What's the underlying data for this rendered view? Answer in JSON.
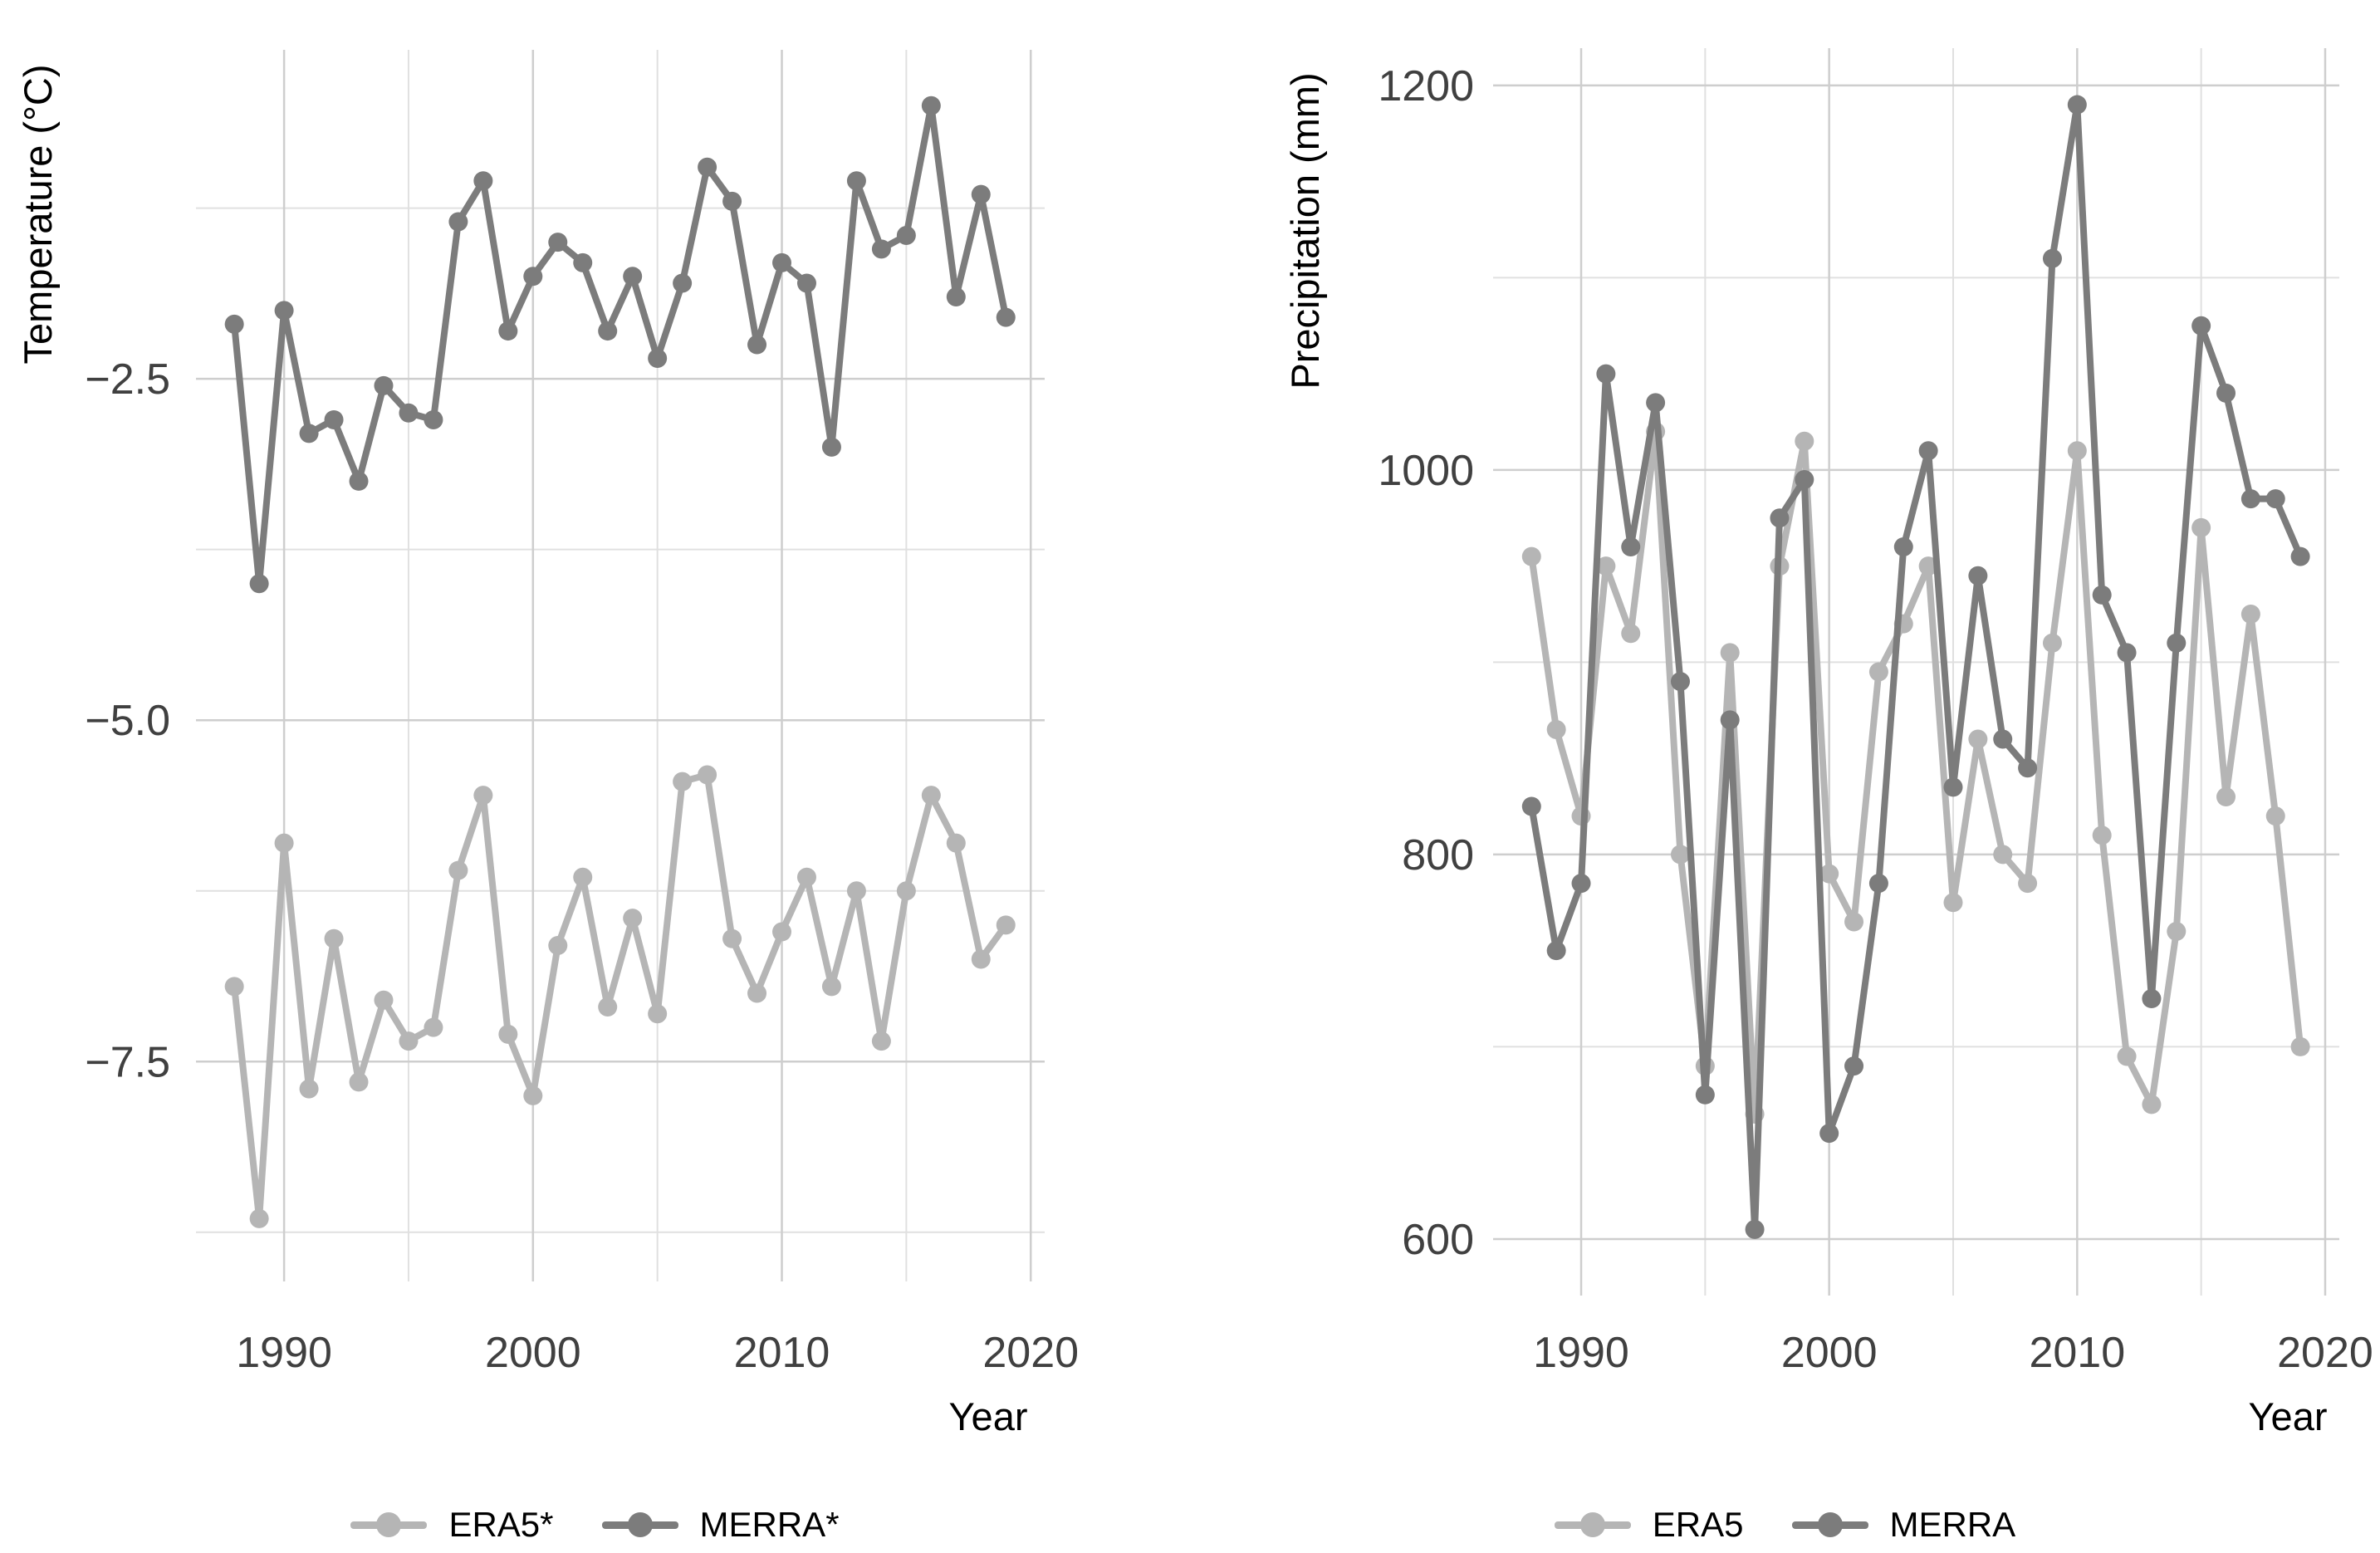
{
  "figure": {
    "background": "#ffffff"
  },
  "colors": {
    "era5": "#b5b5b5",
    "merra": "#7c7c7c",
    "grid_major": "#cecece",
    "grid_minor": "#e0e0e0",
    "tick_text": "#404040",
    "title_text": "#000000"
  },
  "chart_data": [
    {
      "type": "line",
      "title": "",
      "xlabel": "Year",
      "ylabel": "Temperature (°C)",
      "x": [
        1988,
        1989,
        1990,
        1991,
        1992,
        1993,
        1994,
        1995,
        1996,
        1997,
        1998,
        1999,
        2000,
        2001,
        2002,
        2003,
        2004,
        2005,
        2006,
        2007,
        2008,
        2009,
        2010,
        2011,
        2012,
        2013,
        2014,
        2015,
        2016,
        2017,
        2018,
        2019
      ],
      "series": [
        {
          "name": "ERA5*",
          "color_key": "era5",
          "values": [
            -6.95,
            -8.65,
            -5.9,
            -7.7,
            -6.6,
            -7.65,
            -7.05,
            -7.35,
            -7.25,
            -6.1,
            -5.55,
            -7.3,
            -7.75,
            -6.65,
            -6.15,
            -7.1,
            -6.45,
            -7.15,
            -5.45,
            -5.4,
            -6.6,
            -7.0,
            -6.55,
            -6.15,
            -6.95,
            -6.25,
            -7.35,
            -6.25,
            -5.55,
            -5.9,
            -6.75,
            -6.5
          ]
        },
        {
          "name": "MERRA*",
          "color_key": "merra",
          "values": [
            -2.1,
            -4.0,
            -2.0,
            -2.9,
            -2.8,
            -3.25,
            -2.55,
            -2.75,
            -2.8,
            -1.35,
            -1.05,
            -2.15,
            -1.75,
            -1.5,
            -1.65,
            -2.15,
            -1.75,
            -2.35,
            -1.8,
            -0.95,
            -1.2,
            -2.25,
            -1.65,
            -1.8,
            -3.0,
            -1.05,
            -1.55,
            -1.45,
            -0.5,
            -1.9,
            -1.15,
            -2.05
          ]
        }
      ],
      "x_ticks": [
        1990,
        2000,
        2010,
        2020
      ],
      "x_tick_labels": [
        "1990",
        "2000",
        "2010",
        "2020"
      ],
      "x_minor_ticks": [
        1985,
        1995,
        2005,
        2015
      ],
      "y_ticks": [
        -2.5,
        -5.0,
        -7.5
      ],
      "y_tick_labels": [
        "−2.5",
        "−5.0",
        "−7.5"
      ],
      "y_minor_ticks": [
        -1.25,
        -3.75,
        -6.25,
        -8.75
      ],
      "xlim": [
        1986.46,
        2020.56
      ],
      "ylim": [
        -9.11,
        -0.091
      ],
      "grid": true,
      "legend_position": "bottom"
    },
    {
      "type": "line",
      "title": "",
      "xlabel": "Year",
      "ylabel": "Precipitation (mm)",
      "x": [
        1988,
        1989,
        1990,
        1991,
        1992,
        1993,
        1994,
        1995,
        1996,
        1997,
        1998,
        1999,
        2000,
        2001,
        2002,
        2003,
        2004,
        2005,
        2006,
        2007,
        2008,
        2009,
        2010,
        2011,
        2012,
        2013,
        2014,
        2015,
        2016,
        2017,
        2018,
        2019
      ],
      "series": [
        {
          "name": "ERA5",
          "color_key": "era5",
          "values": [
            955,
            865,
            820,
            950,
            915,
            1020,
            800,
            690,
            905,
            665,
            950,
            1015,
            790,
            765,
            895,
            920,
            950,
            775,
            860,
            800,
            785,
            910,
            1010,
            810,
            695,
            670,
            760,
            970,
            830,
            925,
            820,
            700
          ]
        },
        {
          "name": "MERRA",
          "color_key": "merra",
          "values": [
            825,
            750,
            785,
            1050,
            960,
            1035,
            890,
            675,
            870,
            605,
            975,
            995,
            655,
            690,
            785,
            960,
            1010,
            835,
            945,
            860,
            845,
            1110,
            1190,
            935,
            905,
            725,
            910,
            1075,
            1040,
            985,
            985,
            955
          ]
        }
      ],
      "x_ticks": [
        1990,
        2000,
        2010,
        2020
      ],
      "x_tick_labels": [
        "1990",
        "2000",
        "2010",
        "2020"
      ],
      "x_minor_ticks": [
        1985,
        1995,
        2005,
        2015
      ],
      "y_ticks": [
        600,
        800,
        1000,
        1200
      ],
      "y_tick_labels": [
        "600",
        "800",
        "1000",
        "1200"
      ],
      "y_minor_ticks": [
        700,
        900,
        1100
      ],
      "xlim": [
        1986.45,
        2020.57
      ],
      "ylim": [
        570.6,
        1219.4
      ],
      "grid": true,
      "legend_position": "bottom"
    }
  ]
}
